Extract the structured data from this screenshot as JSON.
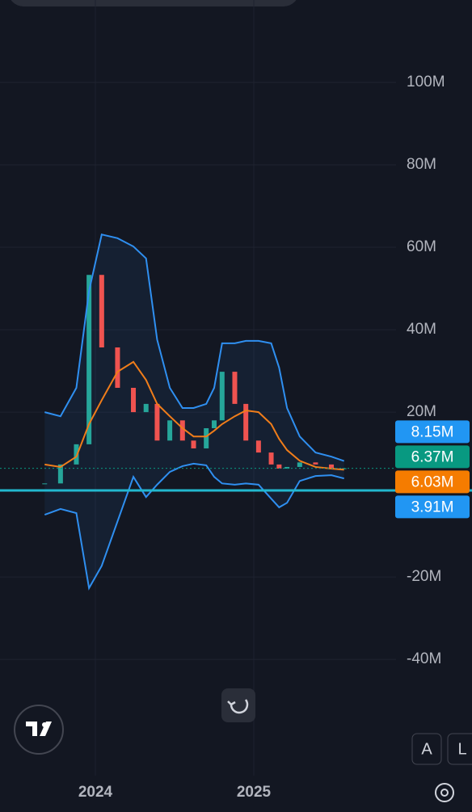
{
  "chart_data": {
    "type": "line",
    "x": [
      2023.68,
      2023.78,
      2023.88,
      2023.96,
      2024.04,
      2024.14,
      2024.24,
      2024.32,
      2024.39,
      2024.47,
      2024.55,
      2024.62,
      2024.7,
      2024.75,
      2024.8,
      2024.88,
      2024.95,
      2025.03,
      2025.11,
      2025.16,
      2025.21,
      2025.29,
      2025.39,
      2025.49,
      2025.57
    ],
    "series": [
      {
        "color": "#2f8ff0",
        "values": [
          20.0,
          19.0,
          25.9,
          49.4,
          63.1,
          62.2,
          60.2,
          57.3,
          37.6,
          25.9,
          21.0,
          21.0,
          22.0,
          25.9,
          36.7,
          36.7,
          37.3,
          37.3,
          36.7,
          30.8,
          21.0,
          14.1,
          10.2,
          9.2,
          8.15
        ]
      },
      {
        "color": "#f07d1a",
        "values": [
          7.3,
          6.7,
          9.2,
          17.1,
          22.9,
          29.8,
          32.2,
          27.8,
          22.0,
          19.0,
          16.1,
          14.1,
          14.1,
          15.5,
          17.1,
          19.0,
          20.4,
          20.0,
          17.1,
          13.5,
          10.8,
          8.2,
          6.7,
          6.3,
          6.03
        ]
      },
      {
        "color": "#2f8ff0",
        "values": [
          -4.9,
          -3.5,
          -4.5,
          -22.7,
          -17.3,
          -6.5,
          4.3,
          -0.6,
          2.4,
          5.5,
          6.9,
          7.5,
          7.1,
          4.3,
          2.7,
          2.4,
          2.7,
          2.4,
          -1.0,
          -3.1,
          -2.0,
          3.3,
          4.5,
          4.7,
          3.91
        ]
      },
      {
        "color": "#26a69a",
        "values": [
          2.7,
          7.3,
          12.2,
          53.3,
          35.7,
          25.9,
          20.0,
          22.0,
          13.1,
          18.0,
          13.1,
          11.2,
          16.1,
          18.0,
          29.8,
          22.0,
          13.1,
          10.2,
          7.3,
          6.3,
          6.7,
          7.8,
          7.3,
          6.3,
          6.37
        ]
      }
    ],
    "down_color": "#ef5350",
    "hline": {
      "value": 1.0,
      "color": "#22b8cf"
    },
    "tags": [
      {
        "value": 8.15,
        "label": "8.15M",
        "color": "#2196f3"
      },
      {
        "value": 6.37,
        "label": "6.37M",
        "color": "#089981"
      },
      {
        "value": 6.03,
        "label": "6.03M",
        "color": "#f57c00"
      },
      {
        "value": 3.91,
        "label": "3.91M",
        "color": "#2196f3"
      }
    ],
    "xlim": [
      2023.398,
      2025.898
    ],
    "xticks": [
      2024,
      2025
    ],
    "ylim": [
      -68.2,
      120
    ],
    "yticks": [
      {
        "value": 100,
        "label": "100M"
      },
      {
        "value": 80,
        "label": "80M"
      },
      {
        "value": 60,
        "label": "60M"
      },
      {
        "value": 40,
        "label": "40M"
      },
      {
        "value": 20,
        "label": "20M"
      },
      {
        "value": -20,
        "label": "-20M"
      },
      {
        "value": -40,
        "label": "-40M"
      }
    ],
    "grid": true
  },
  "ui": {
    "buttons": [
      "A",
      "L"
    ]
  }
}
